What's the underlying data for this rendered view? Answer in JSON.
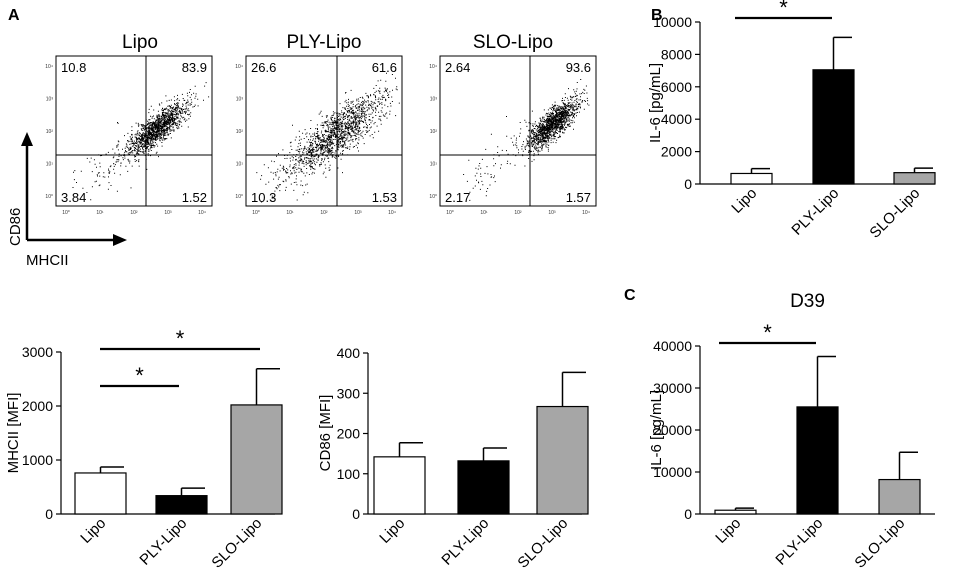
{
  "panel_labels": {
    "a": "A",
    "b": "B",
    "c": "C"
  },
  "flow": {
    "plots": [
      {
        "title": "Lipo",
        "quadrants": {
          "ul": "10.8",
          "ur": "83.9",
          "ll": "3.84",
          "lr": "1.52"
        }
      },
      {
        "title": "PLY-Lipo",
        "quadrants": {
          "ul": "26.6",
          "ur": "61.6",
          "ll": "10.3",
          "lr": "1.53"
        }
      },
      {
        "title": "SLO-Lipo",
        "quadrants": {
          "ul": "2.64",
          "ur": "93.6",
          "ll": "2.17",
          "lr": "1.57"
        }
      }
    ],
    "axis_x_label": "MHCII",
    "axis_y_label": "CD86",
    "log_ticks": [
      "10⁰",
      "10¹",
      "10²",
      "10³",
      "10⁴"
    ]
  },
  "chart_data": [
    {
      "id": "mhcii",
      "type": "bar",
      "panel": "A",
      "categories": [
        "Lipo",
        "PLY-Lipo",
        "SLO-Lipo"
      ],
      "values": [
        760,
        340,
        2020
      ],
      "errors": [
        110,
        140,
        670
      ],
      "colors": [
        "#ffffff",
        "#000000",
        "#a6a6a6"
      ],
      "ylabel": "MHCII [MFI]",
      "ylim": [
        0,
        3000
      ],
      "yticks": [
        0,
        1000,
        2000,
        3000
      ],
      "significance": [
        {
          "from": 0,
          "to": 1,
          "label": "*"
        },
        {
          "from": 0,
          "to": 2,
          "label": "*"
        }
      ]
    },
    {
      "id": "cd86",
      "type": "bar",
      "panel": "A",
      "categories": [
        "Lipo",
        "PLY-Lipo",
        "SLO-Lipo"
      ],
      "values": [
        142,
        132,
        267
      ],
      "errors": [
        35,
        32,
        85
      ],
      "colors": [
        "#ffffff",
        "#000000",
        "#a6a6a6"
      ],
      "ylabel": "CD86 [MFI]",
      "ylim": [
        0,
        400
      ],
      "yticks": [
        0,
        100,
        200,
        300,
        400
      ],
      "significance": []
    },
    {
      "id": "il6_b",
      "type": "bar",
      "panel": "B",
      "categories": [
        "Lipo",
        "PLY-Lipo",
        "SLO-Lipo"
      ],
      "values": [
        650,
        7050,
        700
      ],
      "errors": [
        300,
        2000,
        280
      ],
      "colors": [
        "#ffffff",
        "#000000",
        "#a6a6a6"
      ],
      "ylabel": "IL-6 [pg/mL]",
      "ylim": [
        0,
        10000
      ],
      "yticks": [
        0,
        2000,
        4000,
        6000,
        8000,
        10000
      ],
      "significance": [
        {
          "from": 0,
          "to": 1,
          "label": "*"
        }
      ]
    },
    {
      "id": "il6_c",
      "type": "bar",
      "panel": "C",
      "title": "D39",
      "categories": [
        "Lipo",
        "PLY-Lipo",
        "SLO-Lipo"
      ],
      "values": [
        900,
        25500,
        8200
      ],
      "errors": [
        500,
        12000,
        6500
      ],
      "colors": [
        "#ffffff",
        "#000000",
        "#a6a6a6"
      ],
      "ylabel": "IL-6 [pg/mL]",
      "ylim": [
        0,
        40000
      ],
      "yticks": [
        0,
        10000,
        20000,
        30000,
        40000
      ],
      "significance": [
        {
          "from": 0,
          "to": 1,
          "label": "*"
        }
      ]
    }
  ]
}
